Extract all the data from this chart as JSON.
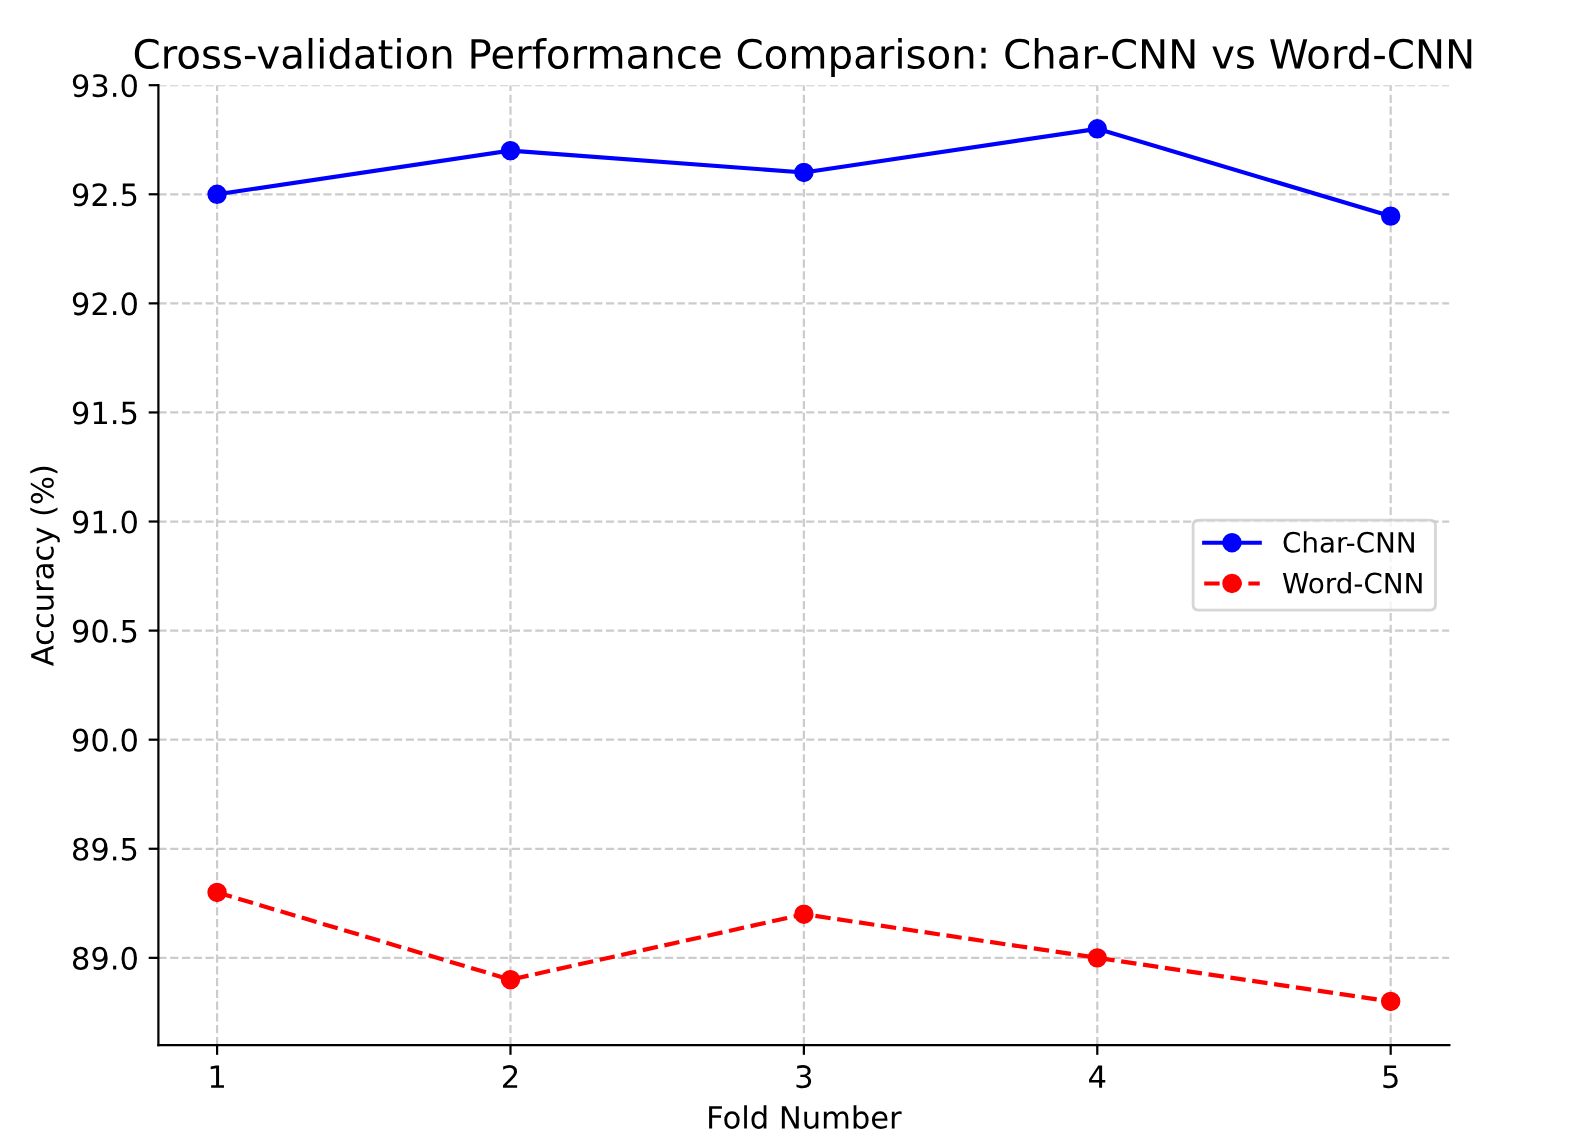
{
  "chart_data": {
    "type": "line",
    "title": "Cross-validation Performance Comparison: Char-CNN vs Word-CNN",
    "xlabel": "Fold Number",
    "ylabel": "Accuracy (%)",
    "x": [
      1,
      2,
      3,
      4,
      5
    ],
    "series": [
      {
        "name": "Char-CNN",
        "color": "#0000ff",
        "values": [
          92.5,
          92.7,
          92.6,
          92.8,
          92.4
        ],
        "line_style": "solid"
      },
      {
        "name": "Word-CNN",
        "color": "#ff0000",
        "values": [
          89.3,
          88.9,
          89.2,
          89.0,
          88.8
        ],
        "line_style": "dashed"
      }
    ],
    "xlim": [
      0.8,
      5.2
    ],
    "xticks": [
      1,
      2,
      3,
      4,
      5
    ],
    "ylim": [
      88.6,
      93.0
    ],
    "yticks": [
      {
        "value": 89.0,
        "label": "89.0"
      },
      {
        "value": 89.5,
        "label": "89.5"
      },
      {
        "value": 90.0,
        "label": "90.0"
      },
      {
        "value": 90.5,
        "label": "90.5"
      },
      {
        "value": 91.0,
        "label": "91.0"
      },
      {
        "value": 91.5,
        "label": "91.5"
      },
      {
        "value": 92.0,
        "label": "92.0"
      },
      {
        "value": 92.5,
        "label": "92.5"
      },
      {
        "value": 93.0,
        "label": "93.0"
      }
    ],
    "grid": true,
    "legend": "center right",
    "marker": "circle"
  }
}
